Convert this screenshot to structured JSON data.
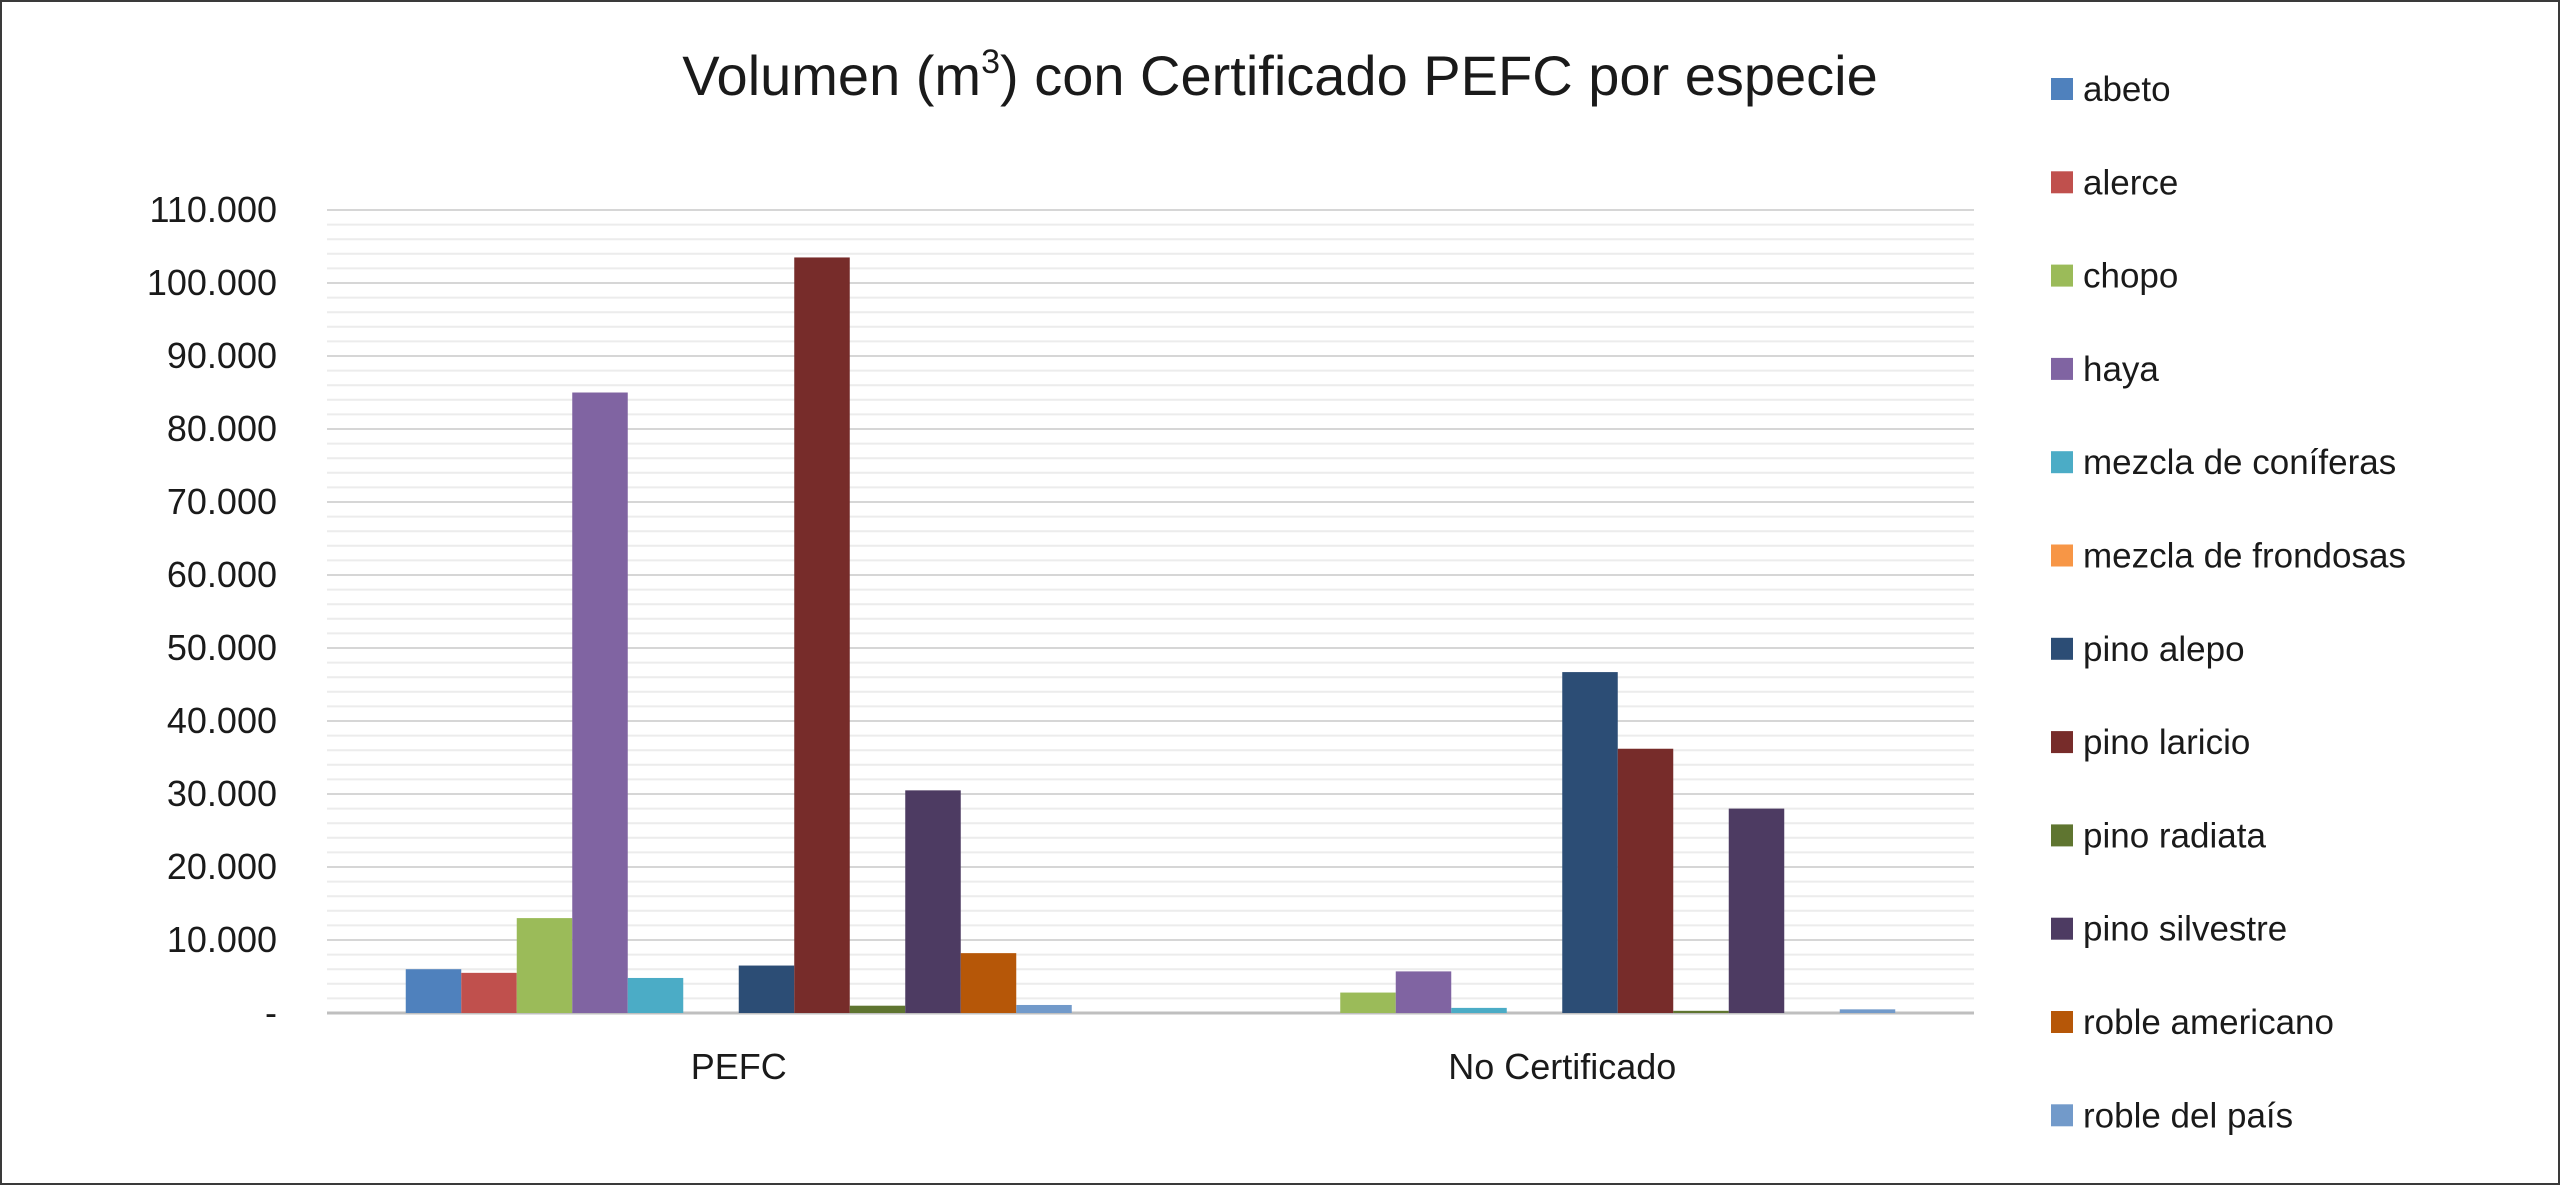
{
  "chart_data": {
    "type": "bar",
    "title": "Volumen (m",
    "title_sup": "3",
    "title_rest": ") con Certificado PEFC por especie",
    "categories": [
      "PEFC",
      "No Certificado"
    ],
    "ylim": [
      0,
      110000
    ],
    "yticks": [
      0,
      10000,
      20000,
      30000,
      40000,
      50000,
      60000,
      70000,
      80000,
      90000,
      100000,
      110000
    ],
    "ytick_labels": [
      "-",
      "10.000",
      "20.000",
      "30.000",
      "40.000",
      "50.000",
      "60.000",
      "70.000",
      "80.000",
      "90.000",
      "100.000",
      "110.000"
    ],
    "grid": true,
    "legend_position": "right",
    "series": [
      {
        "name": "abeto",
        "color": "#4F81BD",
        "values": [
          6000,
          0
        ]
      },
      {
        "name": "alerce",
        "color": "#C0504D",
        "values": [
          5500,
          0
        ]
      },
      {
        "name": "chopo",
        "color": "#9BBB59",
        "values": [
          13000,
          2800
        ]
      },
      {
        "name": "haya",
        "color": "#8064A2",
        "values": [
          85000,
          5700
        ]
      },
      {
        "name": "mezcla de coníferas",
        "color": "#4BACC6",
        "values": [
          4800,
          700
        ]
      },
      {
        "name": "mezcla de frondosas",
        "color": "#F79646",
        "values": [
          0,
          0
        ]
      },
      {
        "name": "pino alepo",
        "color": "#2C4D75",
        "values": [
          6500,
          46700
        ]
      },
      {
        "name": "pino laricio",
        "color": "#772C2A",
        "values": [
          103500,
          36200
        ]
      },
      {
        "name": "pino radiata",
        "color": "#5F7530",
        "values": [
          1000,
          300
        ]
      },
      {
        "name": "pino silvestre",
        "color": "#4D3B62",
        "values": [
          30500,
          28000
        ]
      },
      {
        "name": "roble americano",
        "color": "#B65708",
        "values": [
          8200,
          0
        ]
      },
      {
        "name": "roble del país",
        "color": "#729ACA",
        "values": [
          1100,
          500
        ]
      }
    ]
  }
}
